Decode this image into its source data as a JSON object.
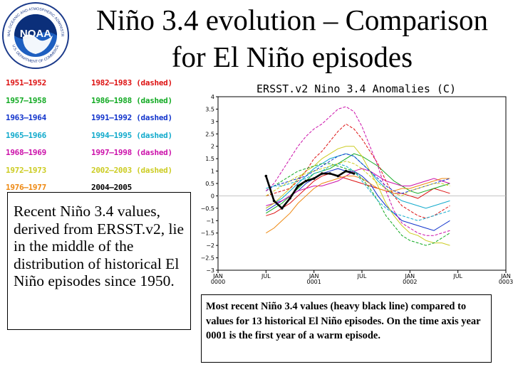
{
  "header": {
    "title_line1": "Niño 3.4 evolution – Comparison",
    "title_line2": "for El Niño episodes"
  },
  "logo": {
    "name": "NOAA",
    "ring_text": "NATIONAL OCEANIC AND ATMOSPHERIC ADMINISTRATION",
    "bottom_text": "U.S. DEPARTMENT OF COMMERCE"
  },
  "legend": {
    "items": [
      {
        "label": "1951—1952",
        "color": "#dd1111"
      },
      {
        "label": "1957—1958",
        "color": "#11aa22"
      },
      {
        "label": "1963—1964",
        "color": "#1133cc"
      },
      {
        "label": "1965—1966",
        "color": "#11aacc"
      },
      {
        "label": "1968—1969",
        "color": "#cc11aa"
      },
      {
        "label": "1972—1973",
        "color": "#cccc22"
      },
      {
        "label": "1976—1977",
        "color": "#ee8811"
      },
      {
        "label": "1982—1983 (dashed)",
        "color": "#dd1111"
      },
      {
        "label": "1986—1988 (dashed)",
        "color": "#11aa22"
      },
      {
        "label": "1991—1992 (dashed)",
        "color": "#1133cc"
      },
      {
        "label": "1994—1995 (dashed)",
        "color": "#11aacc"
      },
      {
        "label": "1997—1998 (dashed)",
        "color": "#cc11aa"
      },
      {
        "label": "2002—2003 (dashed)",
        "color": "#cccc22"
      },
      {
        "label": "2004—2005",
        "color": "#000000"
      }
    ]
  },
  "description": {
    "text": "Recent Niño 3.4 values, derived from ERSST.v2, lie in the middle of the distribution of historical El Niño episodes since 1950."
  },
  "caption": {
    "text": "Most recent Niño 3.4 values (heavy black line) compared to values for 13 historical El Niño episodes. On the time axis year 0001 is the first year of a warm episode."
  },
  "chart_data": {
    "type": "line",
    "title": "ERSST.v2  Nino  3.4  Anomalies  (C)",
    "xlabel": "",
    "ylabel": "",
    "x_months": 36,
    "ylim": [
      -3,
      4
    ],
    "yticks": [
      {
        "value": 4,
        "label": "4"
      },
      {
        "value": 3.5,
        "label": "3.5"
      },
      {
        "value": 3,
        "label": "3"
      },
      {
        "value": 2.5,
        "label": "2.5"
      },
      {
        "value": 2,
        "label": "2"
      },
      {
        "value": 1.5,
        "label": "1.5"
      },
      {
        "value": 1,
        "label": "1"
      },
      {
        "value": 0.5,
        "label": "0.5"
      },
      {
        "value": 0,
        "label": "0"
      },
      {
        "value": -0.5,
        "label": "−0.5"
      },
      {
        "value": -1,
        "label": "−1"
      },
      {
        "value": -1.5,
        "label": "−1.5"
      },
      {
        "value": -2,
        "label": "−2"
      },
      {
        "value": -2.5,
        "label": "−2.5"
      },
      {
        "value": -3,
        "label": "−3"
      }
    ],
    "xticks": [
      {
        "month": 0,
        "label1": "JAN",
        "label2": "0000"
      },
      {
        "month": 6,
        "label1": "JUL",
        "label2": ""
      },
      {
        "month": 12,
        "label1": "JAN",
        "label2": "0001"
      },
      {
        "month": 18,
        "label1": "JUL",
        "label2": ""
      },
      {
        "month": 24,
        "label1": "JAN",
        "label2": "0002"
      },
      {
        "month": 30,
        "label1": "JUL",
        "label2": ""
      },
      {
        "month": 36,
        "label1": "JAN",
        "label2": "0003"
      }
    ],
    "series": [
      {
        "name": "1951—1952",
        "color": "#dd1111",
        "dashed": false,
        "values": [
          -0.8,
          -0.7,
          -0.5,
          -0.3,
          0.0,
          0.3,
          0.6,
          0.8,
          0.9,
          0.8,
          0.7,
          0.6,
          0.5,
          0.4,
          0.3,
          0.2,
          0.1,
          0.1,
          0.0,
          -0.1,
          0.1,
          0.3,
          0.2,
          0.1
        ]
      },
      {
        "name": "1957—1958",
        "color": "#11aa22",
        "dashed": false,
        "values": [
          -0.7,
          -0.5,
          -0.3,
          0.0,
          0.3,
          0.6,
          0.9,
          1.0,
          1.1,
          1.3,
          1.5,
          1.7,
          1.6,
          1.4,
          1.2,
          0.9,
          0.6,
          0.4,
          0.2,
          0.1,
          0.2,
          0.3,
          0.4,
          0.5
        ]
      },
      {
        "name": "1963—1964",
        "color": "#1133cc",
        "dashed": false,
        "values": [
          -0.6,
          -0.4,
          -0.2,
          0.0,
          0.2,
          0.5,
          0.7,
          0.9,
          1.0,
          1.1,
          1.0,
          1.0,
          0.8,
          0.5,
          0.0,
          -0.4,
          -0.7,
          -1.0,
          -1.1,
          -1.2,
          -1.3,
          -1.4,
          -1.2,
          -1.0
        ]
      },
      {
        "name": "1965—1966",
        "color": "#11aacc",
        "dashed": false,
        "values": [
          -0.5,
          -0.3,
          -0.1,
          0.2,
          0.5,
          0.8,
          1.1,
          1.3,
          1.5,
          1.6,
          1.7,
          1.6,
          1.3,
          1.0,
          0.6,
          0.3,
          0.0,
          -0.2,
          -0.3,
          -0.4,
          -0.5,
          -0.4,
          -0.3,
          -0.2
        ]
      },
      {
        "name": "1968—1969",
        "color": "#cc11aa",
        "dashed": false,
        "values": [
          -0.4,
          -0.3,
          -0.2,
          0.0,
          0.2,
          0.3,
          0.4,
          0.4,
          0.5,
          0.6,
          0.8,
          1.0,
          1.1,
          1.0,
          0.8,
          0.6,
          0.5,
          0.4,
          0.4,
          0.5,
          0.6,
          0.7,
          0.6,
          0.5
        ]
      },
      {
        "name": "1972—1973",
        "color": "#cccc22",
        "dashed": false,
        "values": [
          -0.5,
          -0.3,
          0.0,
          0.3,
          0.7,
          1.0,
          1.2,
          1.5,
          1.7,
          1.9,
          2.0,
          2.0,
          1.6,
          1.0,
          0.4,
          -0.3,
          -0.8,
          -1.2,
          -1.5,
          -1.6,
          -1.8,
          -1.9,
          -1.9,
          -2.0
        ]
      },
      {
        "name": "1976—1977",
        "color": "#ee8811",
        "dashed": false,
        "values": [
          -1.5,
          -1.3,
          -1.0,
          -0.7,
          -0.3,
          0.0,
          0.3,
          0.5,
          0.6,
          0.7,
          0.8,
          0.8,
          0.7,
          0.5,
          0.3,
          0.2,
          0.2,
          0.3,
          0.3,
          0.4,
          0.5,
          0.6,
          0.7,
          0.7
        ]
      },
      {
        "name": "1982—1983",
        "color": "#dd1111",
        "dashed": true,
        "values": [
          0.0,
          0.1,
          0.2,
          0.3,
          0.6,
          1.0,
          1.5,
          1.8,
          2.2,
          2.6,
          2.9,
          2.7,
          2.3,
          1.8,
          1.3,
          0.6,
          0.0,
          -0.4,
          -0.6,
          -0.8,
          -0.9,
          -0.8,
          -0.6,
          -0.4
        ]
      },
      {
        "name": "1986—1988",
        "color": "#11aa22",
        "dashed": true,
        "values": [
          0.2,
          0.4,
          0.6,
          0.8,
          1.0,
          1.1,
          1.2,
          1.3,
          1.3,
          1.2,
          1.1,
          1.0,
          0.7,
          0.3,
          -0.2,
          -0.8,
          -1.2,
          -1.6,
          -1.8,
          -1.9,
          -2.0,
          -1.9,
          -1.7,
          -1.5
        ]
      },
      {
        "name": "1991—1992",
        "color": "#1133cc",
        "dashed": true,
        "values": [
          0.2,
          0.4,
          0.5,
          0.6,
          0.7,
          0.8,
          1.0,
          1.2,
          1.4,
          1.6,
          1.7,
          1.6,
          1.3,
          1.0,
          0.7,
          0.4,
          0.2,
          0.1,
          0.2,
          0.3,
          0.4,
          0.5,
          0.6,
          0.7
        ]
      },
      {
        "name": "1994—1995",
        "color": "#11aacc",
        "dashed": true,
        "values": [
          0.3,
          0.4,
          0.4,
          0.5,
          0.6,
          0.7,
          0.9,
          1.0,
          1.2,
          1.3,
          1.2,
          1.0,
          0.6,
          0.2,
          -0.2,
          -0.5,
          -0.7,
          -0.8,
          -0.9,
          -1.0,
          -0.9,
          -0.8,
          -0.7,
          -0.6
        ]
      },
      {
        "name": "1997—1998",
        "color": "#cc11aa",
        "dashed": true,
        "values": [
          0.2,
          0.5,
          1.0,
          1.5,
          2.0,
          2.4,
          2.7,
          2.9,
          3.2,
          3.5,
          3.6,
          3.4,
          2.8,
          2.0,
          1.2,
          0.2,
          -0.6,
          -1.1,
          -1.3,
          -1.5,
          -1.6,
          -1.6,
          -1.5,
          -1.4
        ]
      },
      {
        "name": "2002—2003",
        "color": "#cccc22",
        "dashed": true,
        "values": [
          0.0,
          0.2,
          0.4,
          0.6,
          0.8,
          0.9,
          1.0,
          1.1,
          1.2,
          1.3,
          1.4,
          1.3,
          1.1,
          0.8,
          0.5,
          0.3,
          0.1,
          0.0,
          0.2,
          0.3,
          0.4,
          0.5,
          0.5,
          0.4
        ]
      },
      {
        "name": "2004—2005",
        "color": "#000000",
        "dashed": false,
        "bold": true,
        "values": [
          0.8,
          -0.2,
          -0.5,
          -0.1,
          0.4,
          0.6,
          0.7,
          0.9,
          0.9,
          0.8,
          1.0,
          0.9
        ]
      }
    ]
  }
}
